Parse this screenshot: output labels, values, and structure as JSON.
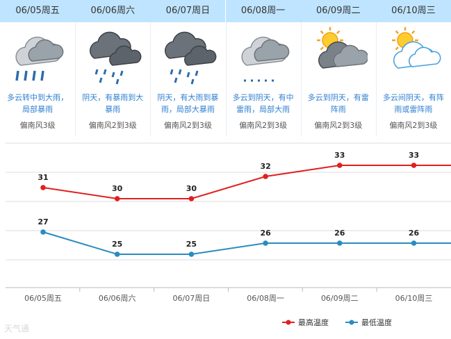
{
  "days": [
    {
      "date": "06/05周五",
      "desc_line1": "多云转中到大雨，",
      "desc_line2": "局部暴雨",
      "wind": "偏南风3级",
      "icon": "heavy-rain-cloud-icon"
    },
    {
      "date": "06/06周六",
      "desc_line1": "阴天，有暴雨到大",
      "desc_line2": "暴雨",
      "wind": "偏南风2到3级",
      "icon": "dark-cloud-rain-icon"
    },
    {
      "date": "06/07周日",
      "desc_line1": "阴天，有大雨到暴",
      "desc_line2": "雨，局部大暴雨",
      "wind": "偏南风2到3级",
      "icon": "dark-cloud-rain-icon"
    },
    {
      "date": "06/08周一",
      "desc_line1": "多云到阴天，有中",
      "desc_line2": "雷雨，局部大雨",
      "wind": "偏南风2到3级",
      "icon": "cloud-rain-icon"
    },
    {
      "date": "06/09周二",
      "desc_line1": "多云到阴天，有雷",
      "desc_line2": "阵雨",
      "wind": "偏南风2到3级",
      "icon": "sun-dark-cloud-icon"
    },
    {
      "date": "06/10周三",
      "desc_line1": "多云间阴天，有阵",
      "desc_line2": "雨或雷阵雨",
      "wind": "偏南风2到3级",
      "icon": "sun-cloud-icon"
    }
  ],
  "chart_data": {
    "type": "line",
    "categories": [
      "06/05周五",
      "06/06周六",
      "06/07周日",
      "06/08周一",
      "06/09周二",
      "06/10周三"
    ],
    "series": [
      {
        "name": "最高温度",
        "values": [
          31,
          30,
          30,
          32,
          33,
          33
        ],
        "color": "#e11f1f"
      },
      {
        "name": "最低温度",
        "values": [
          27,
          25,
          25,
          26,
          26,
          26
        ],
        "color": "#2a8bc0"
      }
    ],
    "ylim": [
      22,
      35
    ],
    "grid": true,
    "legend": "bottom-right"
  },
  "watermark": "天气通"
}
